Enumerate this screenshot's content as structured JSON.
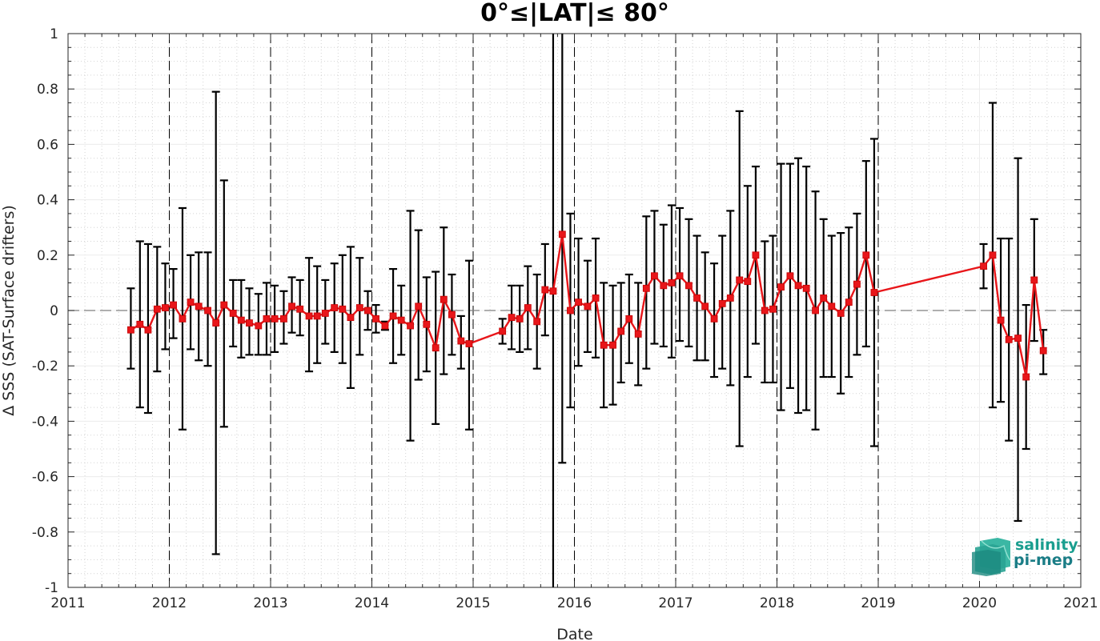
{
  "chart_data": {
    "type": "line",
    "title": "0°≤|LAT|≤ 80°",
    "xlabel": "Date",
    "ylabel": "Δ SSS (SAT-Surface drifters)",
    "xlim": [
      2011,
      2021
    ],
    "ylim": [
      -1,
      1
    ],
    "x_ticks": [
      "2011",
      "2012",
      "2013",
      "2014",
      "2015",
      "2016",
      "2017",
      "2018",
      "2019",
      "2020",
      "2021"
    ],
    "y_ticks": [
      "1",
      "0.8",
      "0.6",
      "0.4",
      "0.2",
      "0",
      "-0.2",
      "-0.4",
      "-0.6",
      "-0.8",
      "-1"
    ],
    "grid": true,
    "reference_line_y": 0,
    "year_separators": [
      2012,
      2013,
      2014,
      2015,
      2016,
      2017,
      2018,
      2019
    ],
    "colors": {
      "series": "#e8161a",
      "errorbars": "#000000",
      "reference": "#7f7f7f",
      "separator": "#000000"
    },
    "series": [
      {
        "points": [
          {
            "x": 2011.62,
            "y": -0.07,
            "lo": -0.21,
            "hi": 0.08
          },
          {
            "x": 2011.71,
            "y": -0.05,
            "lo": -0.35,
            "hi": 0.25
          },
          {
            "x": 2011.79,
            "y": -0.07,
            "lo": -0.37,
            "hi": 0.24
          },
          {
            "x": 2011.88,
            "y": 0.005,
            "lo": -0.22,
            "hi": 0.23
          },
          {
            "x": 2011.96,
            "y": 0.01,
            "lo": -0.14,
            "hi": 0.17
          },
          {
            "x": 2012.04,
            "y": 0.02,
            "lo": -0.1,
            "hi": 0.15
          },
          {
            "x": 2012.13,
            "y": -0.03,
            "lo": -0.43,
            "hi": 0.37
          },
          {
            "x": 2012.21,
            "y": 0.03,
            "lo": -0.14,
            "hi": 0.2
          },
          {
            "x": 2012.29,
            "y": 0.015,
            "lo": -0.18,
            "hi": 0.21
          },
          {
            "x": 2012.38,
            "y": 0.0,
            "lo": -0.2,
            "hi": 0.21
          },
          {
            "x": 2012.46,
            "y": -0.045,
            "lo": -0.88,
            "hi": 0.79
          },
          {
            "x": 2012.54,
            "y": 0.02,
            "lo": -0.42,
            "hi": 0.47
          },
          {
            "x": 2012.63,
            "y": -0.01,
            "lo": -0.13,
            "hi": 0.11
          },
          {
            "x": 2012.71,
            "y": -0.035,
            "lo": -0.17,
            "hi": 0.11
          },
          {
            "x": 2012.79,
            "y": -0.045,
            "lo": -0.16,
            "hi": 0.08
          },
          {
            "x": 2012.88,
            "y": -0.055,
            "lo": -0.16,
            "hi": 0.06
          },
          {
            "x": 2012.96,
            "y": -0.03,
            "lo": -0.16,
            "hi": 0.1
          },
          {
            "x": 2013.04,
            "y": -0.03,
            "lo": -0.15,
            "hi": 0.09
          },
          {
            "x": 2013.13,
            "y": -0.03,
            "lo": -0.12,
            "hi": 0.07
          },
          {
            "x": 2013.21,
            "y": 0.015,
            "lo": -0.08,
            "hi": 0.12
          },
          {
            "x": 2013.29,
            "y": 0.005,
            "lo": -0.09,
            "hi": 0.11
          },
          {
            "x": 2013.38,
            "y": -0.02,
            "lo": -0.22,
            "hi": 0.19
          },
          {
            "x": 2013.46,
            "y": -0.02,
            "lo": -0.19,
            "hi": 0.16
          },
          {
            "x": 2013.54,
            "y": -0.01,
            "lo": -0.12,
            "hi": 0.11
          },
          {
            "x": 2013.63,
            "y": 0.01,
            "lo": -0.15,
            "hi": 0.17
          },
          {
            "x": 2013.71,
            "y": 0.005,
            "lo": -0.19,
            "hi": 0.2
          },
          {
            "x": 2013.79,
            "y": -0.025,
            "lo": -0.28,
            "hi": 0.23
          },
          {
            "x": 2013.88,
            "y": 0.01,
            "lo": -0.16,
            "hi": 0.19
          },
          {
            "x": 2013.96,
            "y": 0.0,
            "lo": -0.07,
            "hi": 0.07
          },
          {
            "x": 2014.04,
            "y": -0.03,
            "lo": -0.08,
            "hi": 0.02
          },
          {
            "x": 2014.13,
            "y": -0.055,
            "lo": -0.07,
            "hi": -0.04
          },
          {
            "x": 2014.21,
            "y": -0.02,
            "lo": -0.19,
            "hi": 0.15
          },
          {
            "x": 2014.29,
            "y": -0.035,
            "lo": -0.16,
            "hi": 0.09
          },
          {
            "x": 2014.38,
            "y": -0.055,
            "lo": -0.47,
            "hi": 0.36
          },
          {
            "x": 2014.46,
            "y": 0.015,
            "lo": -0.25,
            "hi": 0.29
          },
          {
            "x": 2014.54,
            "y": -0.05,
            "lo": -0.22,
            "hi": 0.12
          },
          {
            "x": 2014.63,
            "y": -0.135,
            "lo": -0.41,
            "hi": 0.14
          },
          {
            "x": 2014.71,
            "y": 0.04,
            "lo": -0.23,
            "hi": 0.3
          },
          {
            "x": 2014.79,
            "y": -0.015,
            "lo": -0.16,
            "hi": 0.13
          },
          {
            "x": 2014.88,
            "y": -0.11,
            "lo": -0.21,
            "hi": -0.02
          },
          {
            "x": 2014.96,
            "y": -0.12,
            "lo": -0.43,
            "hi": 0.18
          },
          {
            "x": 2015.29,
            "y": -0.075,
            "lo": -0.12,
            "hi": -0.03
          },
          {
            "x": 2015.38,
            "y": -0.025,
            "lo": -0.14,
            "hi": 0.09
          },
          {
            "x": 2015.46,
            "y": -0.03,
            "lo": -0.15,
            "hi": 0.09
          },
          {
            "x": 2015.54,
            "y": 0.01,
            "lo": -0.14,
            "hi": 0.16
          },
          {
            "x": 2015.63,
            "y": -0.04,
            "lo": -0.21,
            "hi": 0.13
          },
          {
            "x": 2015.71,
            "y": 0.075,
            "lo": -0.09,
            "hi": 0.24
          },
          {
            "x": 2015.79,
            "y": 0.07,
            "lo": -1.05,
            "hi": 1.3
          },
          {
            "x": 2015.88,
            "y": 0.275,
            "lo": -0.55,
            "hi": 1.1
          },
          {
            "x": 2015.96,
            "y": 0.0,
            "lo": -0.35,
            "hi": 0.35
          },
          {
            "x": 2016.04,
            "y": 0.03,
            "lo": -0.2,
            "hi": 0.26
          },
          {
            "x": 2016.13,
            "y": 0.015,
            "lo": -0.15,
            "hi": 0.18
          },
          {
            "x": 2016.21,
            "y": 0.045,
            "lo": -0.17,
            "hi": 0.26
          },
          {
            "x": 2016.29,
            "y": -0.125,
            "lo": -0.35,
            "hi": 0.1
          },
          {
            "x": 2016.38,
            "y": -0.125,
            "lo": -0.34,
            "hi": 0.09
          },
          {
            "x": 2016.46,
            "y": -0.075,
            "lo": -0.26,
            "hi": 0.1
          },
          {
            "x": 2016.54,
            "y": -0.03,
            "lo": -0.19,
            "hi": 0.13
          },
          {
            "x": 2016.63,
            "y": -0.085,
            "lo": -0.27,
            "hi": 0.1
          },
          {
            "x": 2016.71,
            "y": 0.08,
            "lo": -0.21,
            "hi": 0.34
          },
          {
            "x": 2016.79,
            "y": 0.125,
            "lo": -0.12,
            "hi": 0.36
          },
          {
            "x": 2016.88,
            "y": 0.09,
            "lo": -0.13,
            "hi": 0.31
          },
          {
            "x": 2016.96,
            "y": 0.1,
            "lo": -0.17,
            "hi": 0.38
          },
          {
            "x": 2017.04,
            "y": 0.125,
            "lo": -0.11,
            "hi": 0.37
          },
          {
            "x": 2017.13,
            "y": 0.09,
            "lo": -0.13,
            "hi": 0.33
          },
          {
            "x": 2017.21,
            "y": 0.045,
            "lo": -0.18,
            "hi": 0.27
          },
          {
            "x": 2017.29,
            "y": 0.015,
            "lo": -0.18,
            "hi": 0.21
          },
          {
            "x": 2017.38,
            "y": -0.03,
            "lo": -0.24,
            "hi": 0.17
          },
          {
            "x": 2017.46,
            "y": 0.025,
            "lo": -0.21,
            "hi": 0.27
          },
          {
            "x": 2017.54,
            "y": 0.045,
            "lo": -0.27,
            "hi": 0.36
          },
          {
            "x": 2017.63,
            "y": 0.11,
            "lo": -0.49,
            "hi": 0.72
          },
          {
            "x": 2017.71,
            "y": 0.105,
            "lo": -0.24,
            "hi": 0.45
          },
          {
            "x": 2017.79,
            "y": 0.2,
            "lo": -0.12,
            "hi": 0.52
          },
          {
            "x": 2017.88,
            "y": 0.0,
            "lo": -0.26,
            "hi": 0.25
          },
          {
            "x": 2017.96,
            "y": 0.005,
            "lo": -0.26,
            "hi": 0.27
          },
          {
            "x": 2018.04,
            "y": 0.085,
            "lo": -0.36,
            "hi": 0.53
          },
          {
            "x": 2018.13,
            "y": 0.125,
            "lo": -0.28,
            "hi": 0.53
          },
          {
            "x": 2018.21,
            "y": 0.09,
            "lo": -0.37,
            "hi": 0.55
          },
          {
            "x": 2018.29,
            "y": 0.08,
            "lo": -0.36,
            "hi": 0.52
          },
          {
            "x": 2018.38,
            "y": 0.0,
            "lo": -0.43,
            "hi": 0.43
          },
          {
            "x": 2018.46,
            "y": 0.045,
            "lo": -0.24,
            "hi": 0.33
          },
          {
            "x": 2018.54,
            "y": 0.015,
            "lo": -0.24,
            "hi": 0.27
          },
          {
            "x": 2018.63,
            "y": -0.01,
            "lo": -0.3,
            "hi": 0.28
          },
          {
            "x": 2018.71,
            "y": 0.03,
            "lo": -0.24,
            "hi": 0.3
          },
          {
            "x": 2018.79,
            "y": 0.095,
            "lo": -0.16,
            "hi": 0.35
          },
          {
            "x": 2018.88,
            "y": 0.2,
            "lo": -0.13,
            "hi": 0.54
          },
          {
            "x": 2018.96,
            "y": 0.065,
            "lo": -0.49,
            "hi": 0.62
          },
          {
            "x": 2020.04,
            "y": 0.16,
            "lo": 0.08,
            "hi": 0.24
          },
          {
            "x": 2020.13,
            "y": 0.2,
            "lo": -0.35,
            "hi": 0.75
          },
          {
            "x": 2020.21,
            "y": -0.035,
            "lo": -0.33,
            "hi": 0.26
          },
          {
            "x": 2020.29,
            "y": -0.105,
            "lo": -0.47,
            "hi": 0.26
          },
          {
            "x": 2020.38,
            "y": -0.1,
            "lo": -0.76,
            "hi": 0.55
          },
          {
            "x": 2020.46,
            "y": -0.24,
            "lo": -0.5,
            "hi": 0.02
          },
          {
            "x": 2020.54,
            "y": 0.11,
            "lo": -0.11,
            "hi": 0.33
          },
          {
            "x": 2020.63,
            "y": -0.145,
            "lo": -0.23,
            "hi": -0.07
          }
        ]
      }
    ]
  },
  "logo": {
    "line1": "salinity",
    "line2": "pi-mep",
    "color_line1": "#1a9e8f",
    "color_line2": "#1a7d86"
  }
}
